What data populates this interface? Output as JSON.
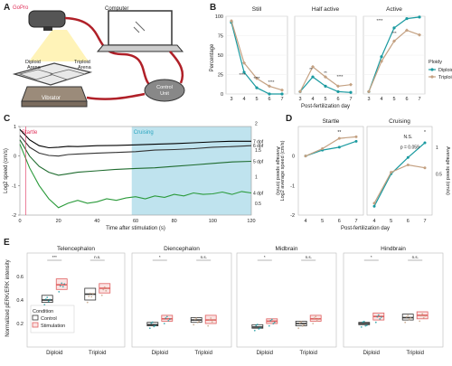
{
  "panel_letters": [
    "A",
    "B",
    "C",
    "D",
    "E"
  ],
  "colors": {
    "diploid": "#1a9aa0",
    "triploid": "#c4a182",
    "control_box": "#333333",
    "stim_box": "#e06060",
    "cruising_bg": "#bfe3ee",
    "startle_text": "#e0305a",
    "cruising_text": "#2aa6c0",
    "cable": "#b02028",
    "wave_4dpf": "#2a9a3a",
    "wave_5dpf": "#1e6b2e",
    "wave_6dpf": "#333333",
    "wave_7dpf": "#000000"
  },
  "panel_a": {
    "labels": {
      "gopro": "GoPro",
      "computer": "Computer",
      "diploid_arena": "Diploid\nArena",
      "triploid_arena": "Triploid\nArena",
      "control_unit": "Control\nUnit",
      "vibrator": "Vibrator"
    }
  },
  "chart_data": [
    {
      "id": "B",
      "type": "line",
      "facets": [
        "Still",
        "Half active",
        "Active"
      ],
      "x": [
        3,
        4,
        5,
        6,
        7
      ],
      "xlabel": "Post-fertilization day",
      "ylabel": "Percentage",
      "ylim": [
        0,
        100
      ],
      "yticks": [
        0,
        25,
        50,
        75,
        100
      ],
      "legend": {
        "title": "Ploidy",
        "entries": [
          "Diploid",
          "Triploid"
        ],
        "position": "right"
      },
      "series": [
        {
          "facet": "Still",
          "name": "Diploid",
          "values": [
            92,
            28,
            8,
            0,
            0
          ]
        },
        {
          "facet": "Still",
          "name": "Triploid",
          "values": [
            94,
            40,
            20,
            10,
            5
          ]
        },
        {
          "facet": "Half active",
          "name": "Diploid",
          "values": [
            3,
            22,
            10,
            3,
            2
          ]
        },
        {
          "facet": "Half active",
          "name": "Triploid",
          "values": [
            3,
            35,
            22,
            10,
            12
          ]
        },
        {
          "facet": "Active",
          "name": "Diploid",
          "values": [
            3,
            48,
            85,
            97,
            99
          ]
        },
        {
          "facet": "Active",
          "name": "Triploid",
          "values": [
            3,
            42,
            68,
            82,
            76
          ]
        }
      ],
      "annotations": [
        {
          "facet": "Still",
          "texts": [
            "****",
            "****",
            "****"
          ]
        },
        {
          "facet": "Half active",
          "texts": [
            "**",
            "**",
            "****"
          ]
        },
        {
          "facet": "Active",
          "texts": [
            "****",
            "***"
          ]
        }
      ]
    },
    {
      "id": "C",
      "type": "line",
      "xlabel": "Time after stimulation (s)",
      "ylabel": "Log2 speed (cm/s)",
      "ylabel_right": "Average speed (cm/s)",
      "xlim": [
        0,
        120
      ],
      "xticks": [
        0,
        20,
        40,
        60,
        80,
        100,
        120
      ],
      "ylim": [
        -2,
        1
      ],
      "yticks": [
        -2,
        -1,
        0,
        1
      ],
      "yticks_right": [
        0.5,
        1.0,
        1.5,
        2.0
      ],
      "regions": [
        {
          "label": "Startle",
          "from": 0,
          "to": 3
        },
        {
          "label": "Cruising",
          "from": 58,
          "to": 120
        }
      ],
      "series": [
        {
          "name": "7 dpf",
          "x": [
            0,
            5,
            10,
            15,
            20,
            25,
            30,
            40,
            50,
            60,
            70,
            80,
            90,
            100,
            110,
            120
          ],
          "values": [
            0.9,
            0.55,
            0.35,
            0.28,
            0.3,
            0.33,
            0.32,
            0.35,
            0.36,
            0.38,
            0.4,
            0.42,
            0.45,
            0.48,
            0.5,
            0.5
          ]
        },
        {
          "name": "6 dpf",
          "x": [
            0,
            5,
            10,
            15,
            20,
            25,
            30,
            40,
            50,
            60,
            70,
            80,
            90,
            100,
            110,
            120
          ],
          "values": [
            0.7,
            0.3,
            0.1,
            0.02,
            0.0,
            0.05,
            0.07,
            0.1,
            0.12,
            0.15,
            0.2,
            0.22,
            0.25,
            0.3,
            0.32,
            0.35
          ]
        },
        {
          "name": "5 dpf",
          "x": [
            0,
            5,
            10,
            15,
            20,
            25,
            30,
            40,
            50,
            60,
            70,
            80,
            90,
            100,
            110,
            120
          ],
          "values": [
            0.55,
            0.0,
            -0.35,
            -0.55,
            -0.65,
            -0.6,
            -0.55,
            -0.5,
            -0.45,
            -0.42,
            -0.4,
            -0.35,
            -0.3,
            -0.25,
            -0.2,
            -0.18
          ]
        },
        {
          "name": "4 dpf",
          "x": [
            0,
            5,
            10,
            15,
            20,
            25,
            30,
            35,
            40,
            45,
            50,
            55,
            60,
            65,
            70,
            75,
            80,
            85,
            90,
            95,
            100,
            105,
            110,
            115,
            120
          ],
          "values": [
            0.4,
            -0.4,
            -1.0,
            -1.45,
            -1.75,
            -1.6,
            -1.5,
            -1.6,
            -1.55,
            -1.45,
            -1.5,
            -1.42,
            -1.38,
            -1.45,
            -1.35,
            -1.4,
            -1.3,
            -1.35,
            -1.25,
            -1.3,
            -1.28,
            -1.22,
            -1.3,
            -1.2,
            -1.25
          ]
        }
      ]
    },
    {
      "id": "D",
      "type": "line",
      "facets": [
        "Startle",
        "Cruising"
      ],
      "x": [
        4,
        5,
        6,
        7
      ],
      "xlabel": "Post-fertilization day",
      "ylabel": "Log2 average speed (cm/s)",
      "ylabel_right": "Average speed (cm/s)",
      "ylim": [
        -2,
        1
      ],
      "yticks": [
        -2,
        -1,
        0
      ],
      "yticks_right": [
        0.5,
        1.0
      ],
      "series": [
        {
          "facet": "Startle",
          "name": "Diploid",
          "values": [
            0.0,
            0.2,
            0.3,
            0.5
          ]
        },
        {
          "facet": "Startle",
          "name": "Triploid",
          "values": [
            0.0,
            0.25,
            0.6,
            0.65
          ]
        },
        {
          "facet": "Cruising",
          "name": "Diploid",
          "values": [
            -1.7,
            -0.6,
            -0.05,
            0.45
          ]
        },
        {
          "facet": "Cruising",
          "name": "Triploid",
          "values": [
            -1.6,
            -0.55,
            -0.3,
            -0.4
          ]
        }
      ],
      "annotations": [
        {
          "facet": "Startle",
          "texts": [
            "**"
          ]
        },
        {
          "facet": "Cruising",
          "texts": [
            "N.S.",
            "p = 0.059",
            "*"
          ]
        }
      ]
    },
    {
      "id": "E",
      "type": "box",
      "facets": [
        "Telencephalon",
        "Diencephalon",
        "Midbrain",
        "Hindbrain"
      ],
      "categories": [
        "Diploid",
        "Triploid"
      ],
      "ylabel": "Normalized pERK/ERK intensity",
      "ylim": [
        0,
        0.8
      ],
      "yticks": [
        0.2,
        0.4,
        0.6
      ],
      "legend": {
        "title": "Condition",
        "entries": [
          "Control",
          "Stimulation"
        ],
        "position": "bottom-left"
      },
      "groups": [
        {
          "facet": "Telencephalon",
          "category": "Diploid",
          "condition": "Control",
          "q1": 0.38,
          "median": 0.4,
          "q3": 0.44
        },
        {
          "facet": "Telencephalon",
          "category": "Diploid",
          "condition": "Stimulation",
          "q1": 0.49,
          "median": 0.53,
          "q3": 0.58
        },
        {
          "facet": "Telencephalon",
          "category": "Triploid",
          "condition": "Control",
          "q1": 0.4,
          "median": 0.45,
          "q3": 0.5
        },
        {
          "facet": "Telencephalon",
          "category": "Triploid",
          "condition": "Stimulation",
          "q1": 0.46,
          "median": 0.5,
          "q3": 0.54
        },
        {
          "facet": "Diencephalon",
          "category": "Diploid",
          "condition": "Control",
          "q1": 0.18,
          "median": 0.19,
          "q3": 0.21
        },
        {
          "facet": "Diencephalon",
          "category": "Diploid",
          "condition": "Stimulation",
          "q1": 0.22,
          "median": 0.24,
          "q3": 0.27
        },
        {
          "facet": "Diencephalon",
          "category": "Triploid",
          "condition": "Control",
          "q1": 0.21,
          "median": 0.23,
          "q3": 0.25
        },
        {
          "facet": "Diencephalon",
          "category": "Triploid",
          "condition": "Stimulation",
          "q1": 0.2,
          "median": 0.23,
          "q3": 0.27
        },
        {
          "facet": "Midbrain",
          "category": "Diploid",
          "condition": "Control",
          "q1": 0.16,
          "median": 0.17,
          "q3": 0.19
        },
        {
          "facet": "Midbrain",
          "category": "Diploid",
          "condition": "Stimulation",
          "q1": 0.2,
          "median": 0.22,
          "q3": 0.24
        },
        {
          "facet": "Midbrain",
          "category": "Triploid",
          "condition": "Control",
          "q1": 0.18,
          "median": 0.2,
          "q3": 0.22
        },
        {
          "facet": "Midbrain",
          "category": "Triploid",
          "condition": "Stimulation",
          "q1": 0.22,
          "median": 0.24,
          "q3": 0.27
        },
        {
          "facet": "Hindbrain",
          "category": "Diploid",
          "condition": "Control",
          "q1": 0.19,
          "median": 0.2,
          "q3": 0.21
        },
        {
          "facet": "Hindbrain",
          "category": "Diploid",
          "condition": "Stimulation",
          "q1": 0.23,
          "median": 0.26,
          "q3": 0.29
        },
        {
          "facet": "Hindbrain",
          "category": "Triploid",
          "condition": "Control",
          "q1": 0.23,
          "median": 0.25,
          "q3": 0.28
        },
        {
          "facet": "Hindbrain",
          "category": "Triploid",
          "condition": "Stimulation",
          "q1": 0.24,
          "median": 0.27,
          "q3": 0.3
        }
      ],
      "annotations": [
        {
          "facet": "Telencephalon",
          "texts": [
            "***",
            "n.s."
          ]
        },
        {
          "facet": "Diencephalon",
          "texts": [
            "*",
            "n.s."
          ]
        },
        {
          "facet": "Midbrain",
          "texts": [
            "*",
            "n.s."
          ]
        },
        {
          "facet": "Hindbrain",
          "texts": [
            "*",
            "n.s."
          ]
        }
      ]
    }
  ]
}
